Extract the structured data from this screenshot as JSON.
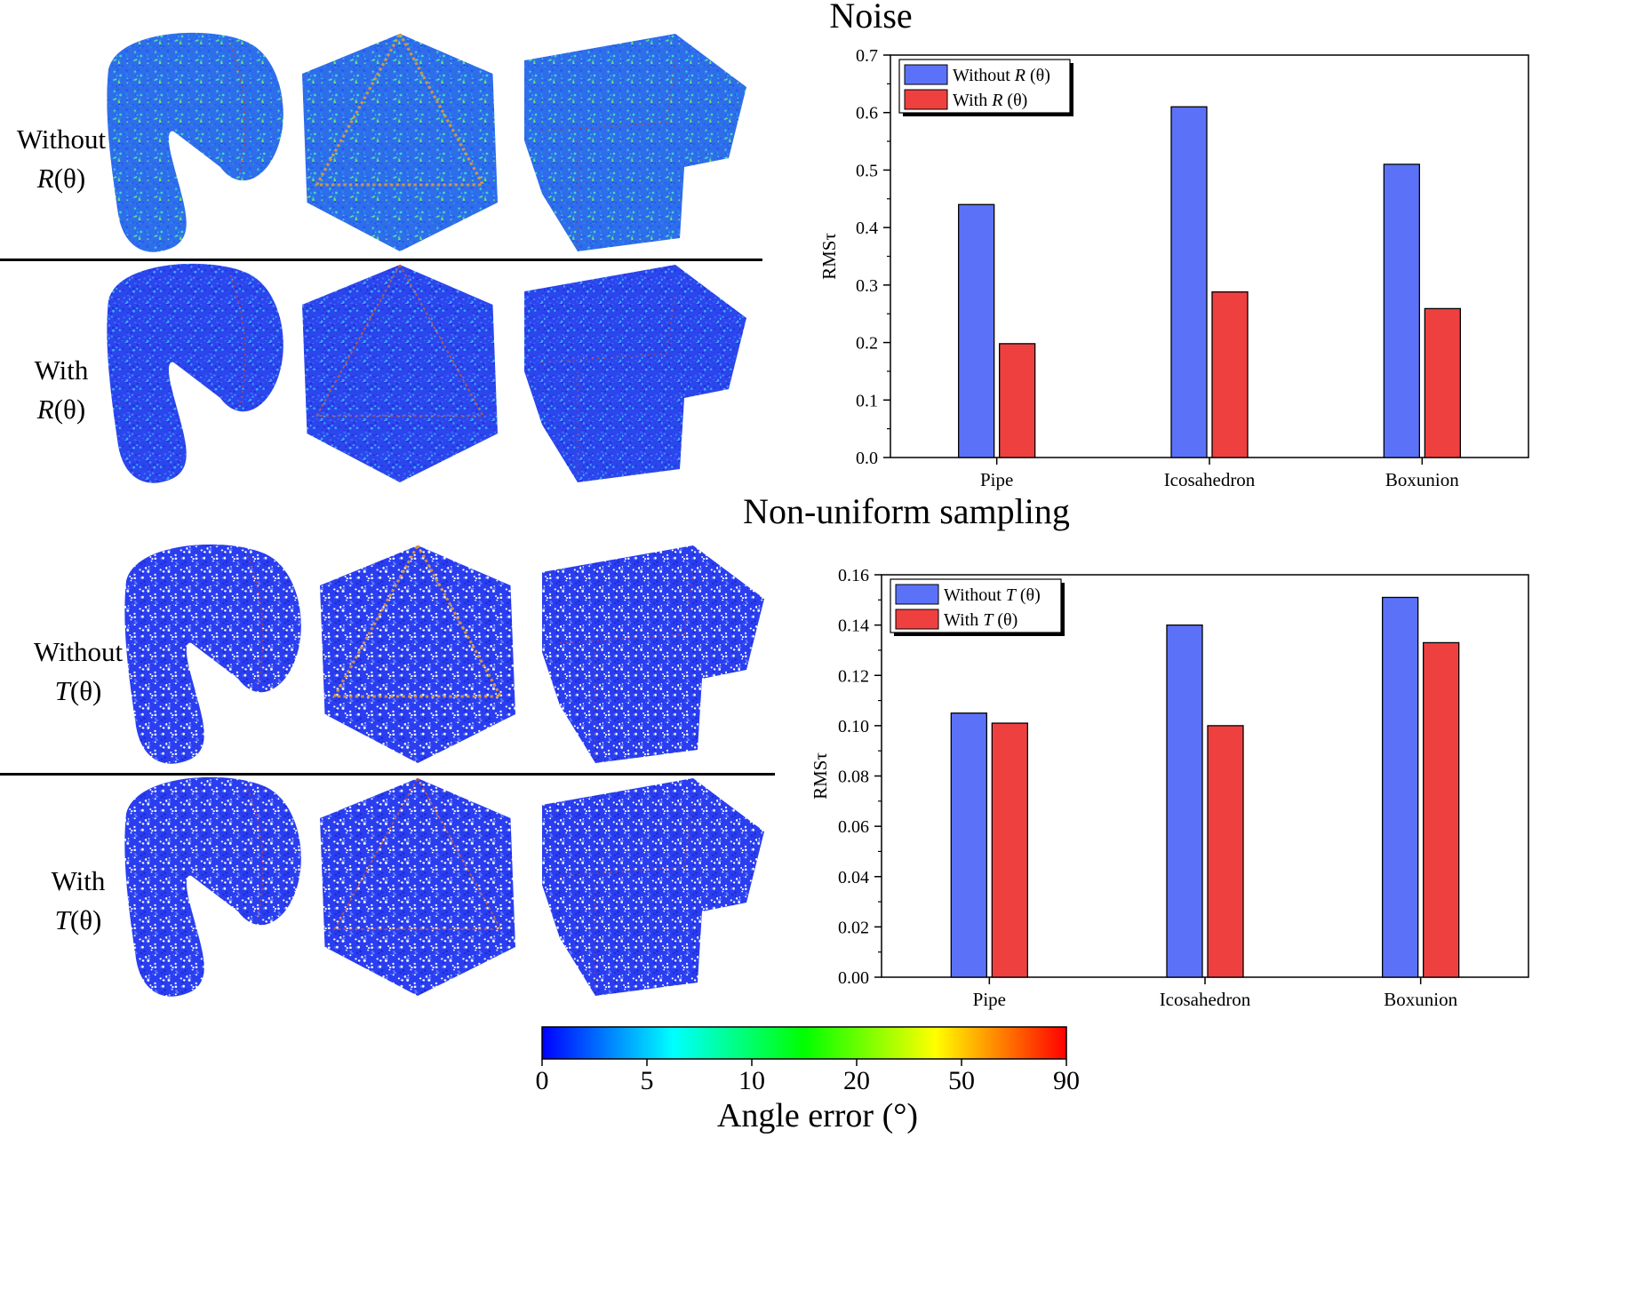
{
  "sections": [
    {
      "title": "Noise",
      "rows": [
        {
          "label_line1": "Without",
          "label_sym": "R",
          "label_arg": "(θ)",
          "quality": 1
        },
        {
          "label_line1": "With",
          "label_sym": "R",
          "label_arg": "(θ)",
          "quality": 0
        }
      ]
    },
    {
      "title": "Non-uniform sampling",
      "rows": [
        {
          "label_line1": "Without",
          "label_sym": "T",
          "label_arg": "(θ)",
          "quality": 1
        },
        {
          "label_line1": "With",
          "label_sym": "T",
          "label_arg": "(θ)",
          "quality": 0
        }
      ]
    }
  ],
  "chart_data": [
    {
      "type": "bar",
      "categories": [
        "Pipe",
        "Icosahedron",
        "Boxunion"
      ],
      "ylabel": "RMSτ",
      "ylim": [
        0,
        0.7
      ],
      "yticks": [
        "0.0",
        "0.1",
        "0.2",
        "0.3",
        "0.4",
        "0.5",
        "0.6",
        "0.7"
      ],
      "legend_position": "top-left",
      "series": [
        {
          "name_prefix": "Without ",
          "name_sym": "R",
          "name_arg": " (θ)",
          "color": "#5b72f8",
          "values": [
            0.44,
            0.61,
            0.51
          ]
        },
        {
          "name_prefix": "With ",
          "name_sym": "R",
          "name_arg": " (θ)",
          "color": "#ef4040",
          "values": [
            0.198,
            0.288,
            0.259
          ]
        }
      ]
    },
    {
      "type": "bar",
      "categories": [
        "Pipe",
        "Icosahedron",
        "Boxunion"
      ],
      "ylabel": "RMSτ",
      "ylim": [
        0,
        0.16
      ],
      "yticks": [
        "0.00",
        "0.02",
        "0.04",
        "0.06",
        "0.08",
        "0.10",
        "0.12",
        "0.14",
        "0.16"
      ],
      "legend_position": "top-left",
      "series": [
        {
          "name_prefix": "Without ",
          "name_sym": "T",
          "name_arg": " (θ)",
          "color": "#5b72f8",
          "values": [
            0.105,
            0.14,
            0.151
          ]
        },
        {
          "name_prefix": "With ",
          "name_sym": "T",
          "name_arg": " (θ)",
          "color": "#ef4040",
          "values": [
            0.101,
            0.1,
            0.133
          ]
        }
      ]
    }
  ],
  "colorbar": {
    "ticks": [
      "0",
      "5",
      "10",
      "20",
      "50",
      "90"
    ],
    "label": "Angle error (°)",
    "colors": [
      "#0000ff",
      "#00ffff",
      "#00ff00",
      "#ffff00",
      "#ff0000"
    ]
  },
  "shape_names": [
    "pipe-shape",
    "icosahedron-shape",
    "boxunion-shape"
  ]
}
